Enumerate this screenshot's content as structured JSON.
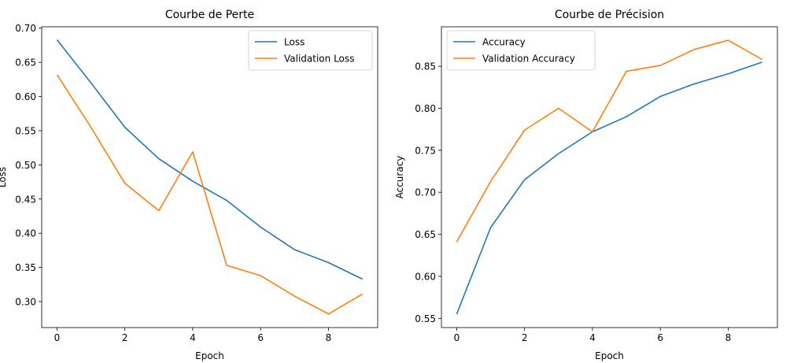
{
  "chart_data": [
    {
      "type": "line",
      "title": "Courbe de Perte",
      "xlabel": "Epoch",
      "ylabel": "Loss",
      "xlim": [
        -0.45,
        9.45
      ],
      "ylim": [
        0.262,
        0.702
      ],
      "xticks": [
        0,
        2,
        4,
        6,
        8
      ],
      "yticks": [
        0.3,
        0.35,
        0.4,
        0.45,
        0.5,
        0.55,
        0.6,
        0.65,
        0.7
      ],
      "grid": false,
      "legend": "top-right",
      "x": [
        0,
        1,
        2,
        3,
        4,
        5,
        6,
        7,
        8,
        9
      ],
      "series": [
        {
          "name": "Loss",
          "color": "#1f77b4",
          "values": [
            0.683,
            0.62,
            0.555,
            0.509,
            0.476,
            0.448,
            0.409,
            0.376,
            0.357,
            0.333
          ]
        },
        {
          "name": "Validation Loss",
          "color": "#ff7f0e",
          "values": [
            0.632,
            0.555,
            0.473,
            0.433,
            0.519,
            0.353,
            0.338,
            0.308,
            0.282,
            0.311
          ]
        }
      ]
    },
    {
      "type": "line",
      "title": "Courbe de Précision",
      "xlabel": "Epoch",
      "ylabel": "Accuracy",
      "xlim": [
        -0.45,
        9.45
      ],
      "ylim": [
        0.539,
        0.897
      ],
      "xticks": [
        0,
        2,
        4,
        6,
        8
      ],
      "yticks": [
        0.55,
        0.6,
        0.65,
        0.7,
        0.75,
        0.8,
        0.85
      ],
      "grid": false,
      "legend": "top-left",
      "x": [
        0,
        1,
        2,
        3,
        4,
        5,
        6,
        7,
        8,
        9
      ],
      "series": [
        {
          "name": "Accuracy",
          "color": "#1f77b4",
          "values": [
            0.555,
            0.658,
            0.715,
            0.746,
            0.772,
            0.79,
            0.814,
            0.829,
            0.841,
            0.855
          ]
        },
        {
          "name": "Validation Accuracy",
          "color": "#ff7f0e",
          "values": [
            0.641,
            0.713,
            0.774,
            0.8,
            0.772,
            0.844,
            0.851,
            0.87,
            0.881,
            0.858
          ]
        }
      ]
    }
  ]
}
